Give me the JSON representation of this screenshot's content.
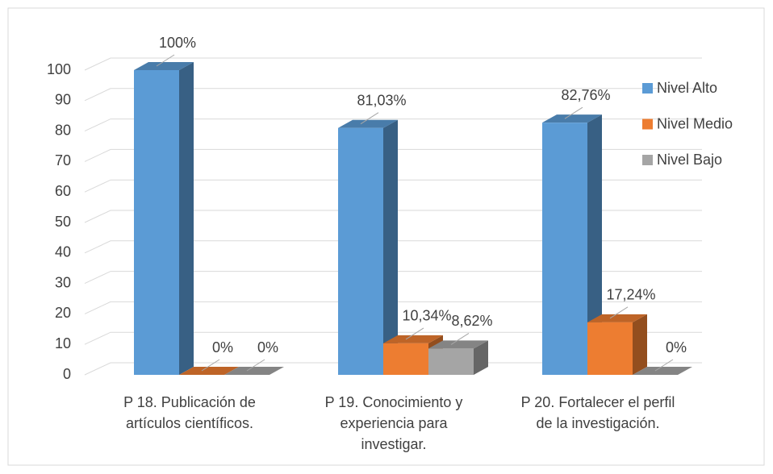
{
  "chart_data": {
    "type": "bar3d",
    "categories": [
      "P 18. Publicación de artículos científicos.",
      "P 19. Conocimiento y experiencia para investigar.",
      "P 20. Fortalecer el perfil de la investigación."
    ],
    "series": [
      {
        "name": "Nivel Alto",
        "color": "#5b9bd5",
        "values": [
          100,
          81.03,
          82.76
        ],
        "value_labels": [
          "100%",
          "81,03%",
          "82,76%"
        ]
      },
      {
        "name": "Nivel Medio",
        "color": "#ed7d31",
        "values": [
          0,
          10.34,
          17.24
        ],
        "value_labels": [
          "0%",
          "10,34%",
          "17,24%"
        ]
      },
      {
        "name": "Nivel Bajo",
        "color": "#a5a5a5",
        "values": [
          0,
          8.62,
          0
        ],
        "value_labels": [
          "0%",
          "8,62%",
          "0%"
        ]
      }
    ],
    "ylim": [
      0,
      100
    ],
    "yticks": [
      0,
      10,
      20,
      30,
      40,
      50,
      60,
      70,
      80,
      90,
      100
    ],
    "grid": true,
    "legend": "right"
  }
}
